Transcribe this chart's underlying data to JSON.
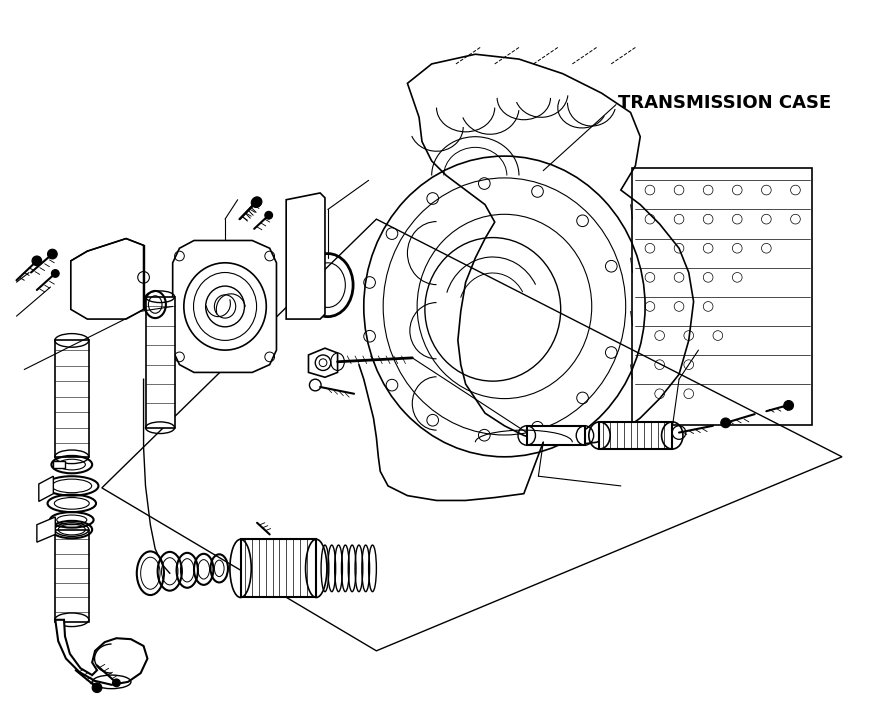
{
  "background_color": "#ffffff",
  "label_transmission": "TRANSMISSION CASE",
  "label_fontsize": 13,
  "fig_width": 8.77,
  "fig_height": 7.07,
  "dpi": 100,
  "line_color": "#000000",
  "line_width": 1.0
}
